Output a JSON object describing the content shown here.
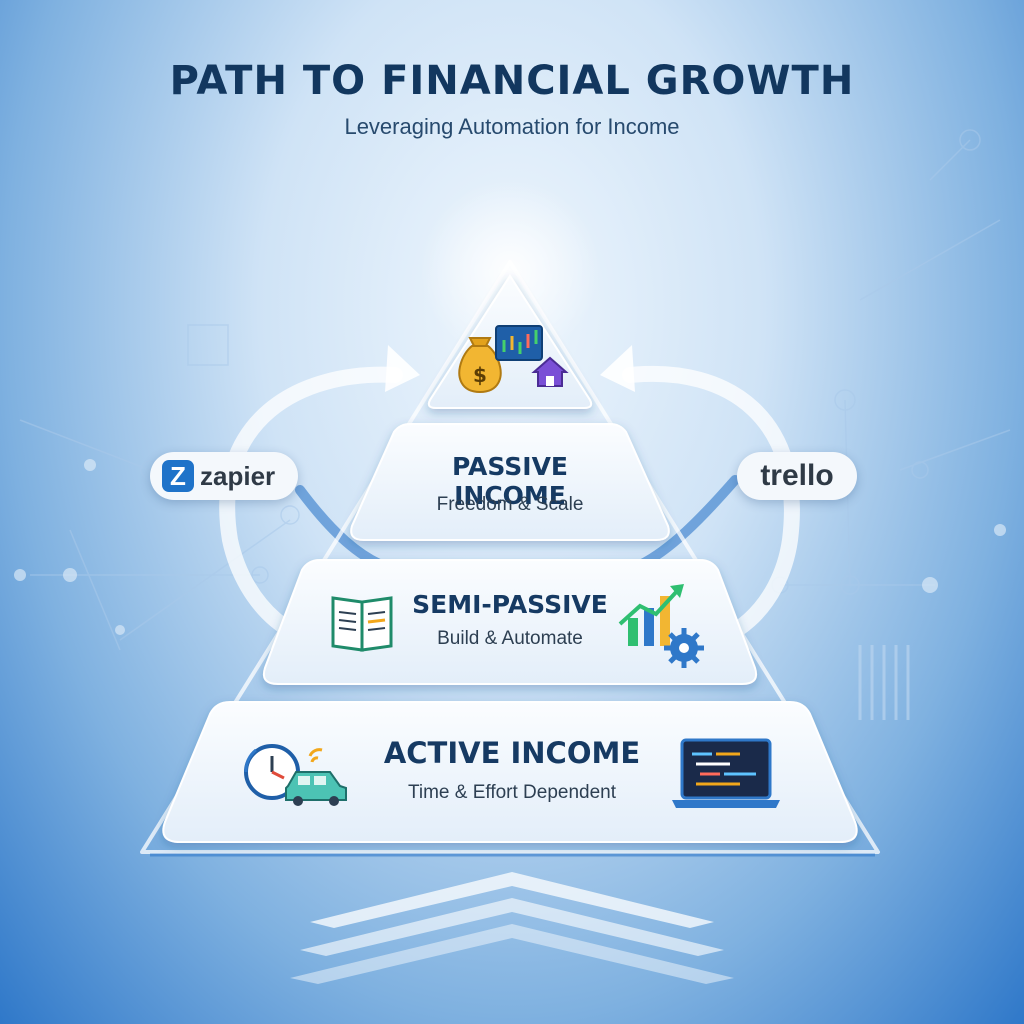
{
  "header": {
    "title": "PATH TO FINANCIAL GROWTH",
    "subtitle": "Leveraging Automation for Income"
  },
  "tiers": [
    {
      "title": "PASSIVE INCOME",
      "subtitle": "Freedom & Scale"
    },
    {
      "title": "SEMI-PASSIVE",
      "subtitle": "Build & Automate"
    },
    {
      "title": "ACTIVE INCOME",
      "subtitle": "Time & Effort Dependent"
    }
  ],
  "apex_icons": [
    "money-bag-icon",
    "stock-chart-icon",
    "house-icon"
  ],
  "tools": {
    "left": "zapier",
    "left_logo_letter": "Z",
    "right": "trello"
  },
  "icons": {
    "semi_left": "open-book-icon",
    "semi_right": "growth-chart-gear-icon",
    "active_left": "clock-car-icon",
    "active_right": "laptop-code-icon"
  },
  "colors": {
    "title": "#12375f",
    "accent_blue": "#1f73c9",
    "tier_fill": "#f3f7fc"
  }
}
